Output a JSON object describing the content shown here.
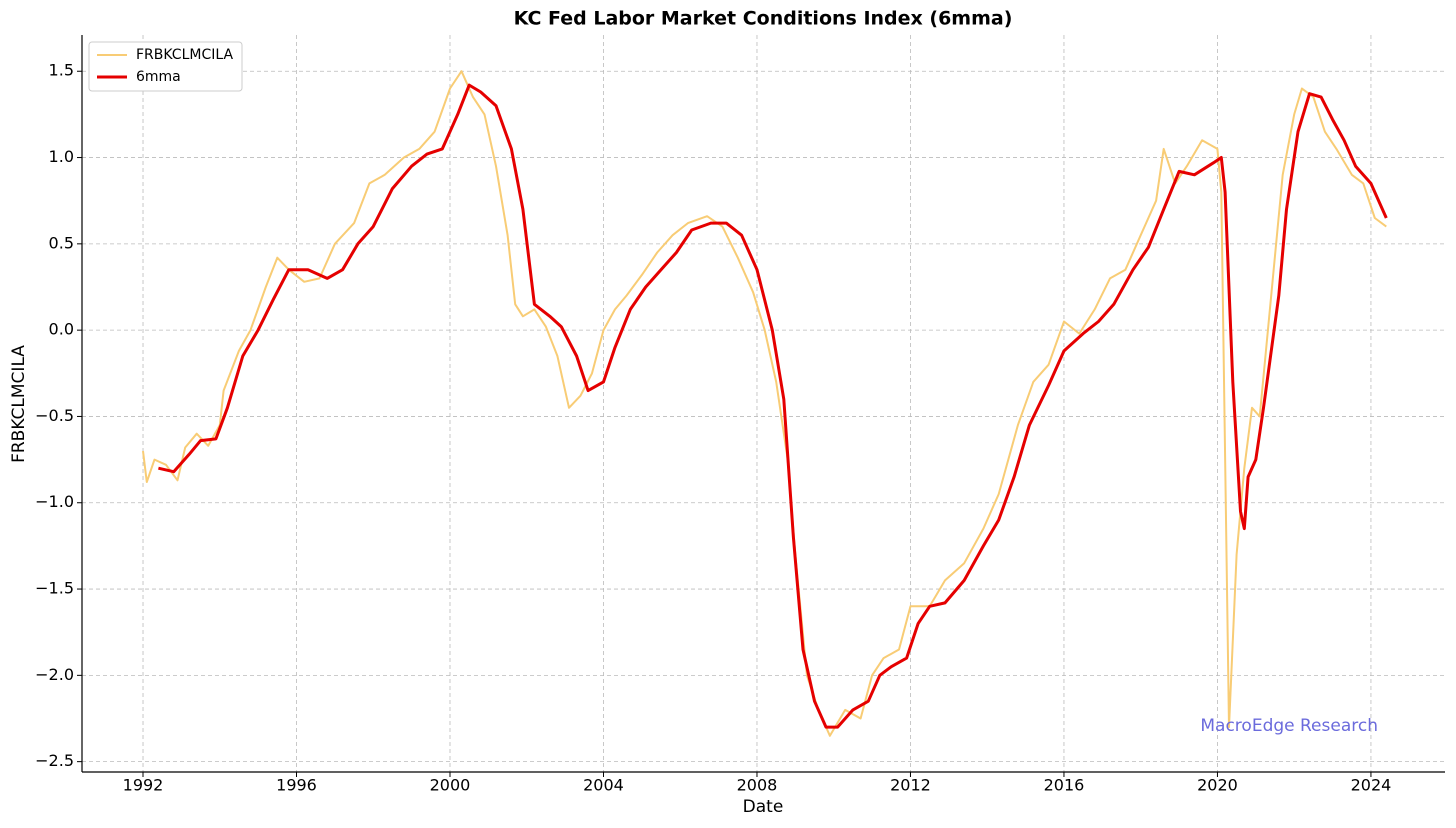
{
  "chart_data": {
    "type": "line",
    "title": "KC Fed Labor Market Conditions Index (6mma)",
    "x_label": "Date",
    "y_label": "FRBKCLMCILA",
    "annotation": "MacroEdge Research",
    "xlim": [
      1990.41,
      2025.93
    ],
    "xticks": [
      1992,
      1996,
      2000,
      2004,
      2008,
      2012,
      2016,
      2020,
      2024
    ],
    "ylim": [
      -2.56,
      1.71
    ],
    "yticks": [
      {
        "value": -2.5,
        "label": "−2.5"
      },
      {
        "value": -2.0,
        "label": "−2.0"
      },
      {
        "value": -1.5,
        "label": "−1.5"
      },
      {
        "value": -1.0,
        "label": "−1.0"
      },
      {
        "value": -0.5,
        "label": "−0.5"
      },
      {
        "value": 0,
        "label": "0.0"
      },
      0.5,
      {
        "value": 1.0,
        "label": "1.0"
      },
      1.5
    ],
    "grid": true,
    "legend": "upper-left",
    "series": [
      {
        "name": "FRBKCLMCILA",
        "color": "#f8cc75",
        "width": 2,
        "x": [
          1992.0,
          1992.1,
          1992.3,
          1992.6,
          1992.9,
          1993.1,
          1993.4,
          1993.7,
          1994.0,
          1994.1,
          1994.5,
          1994.8,
          1995.2,
          1995.5,
          1995.8,
          1996.2,
          1996.6,
          1997.0,
          1997.5,
          1997.9,
          1998.3,
          1998.8,
          1999.2,
          1999.6,
          2000.0,
          2000.3,
          2000.6,
          2000.9,
          2001.2,
          2001.5,
          2001.7,
          2001.9,
          2002.2,
          2002.5,
          2002.8,
          2003.1,
          2003.4,
          2003.7,
          2004.0,
          2004.3,
          2004.6,
          2005.0,
          2005.4,
          2005.8,
          2006.2,
          2006.7,
          2007.1,
          2007.5,
          2007.9,
          2008.2,
          2008.5,
          2008.8,
          2009.0,
          2009.3,
          2009.6,
          2009.9,
          2010.3,
          2010.7,
          2011.0,
          2011.3,
          2011.7,
          2012.0,
          2012.5,
          2012.9,
          2013.4,
          2013.9,
          2014.3,
          2014.8,
          2015.2,
          2015.6,
          2016.0,
          2016.4,
          2016.8,
          2017.2,
          2017.6,
          2018.0,
          2018.4,
          2018.6,
          2018.9,
          2019.2,
          2019.6,
          2020.0,
          2020.1,
          2020.3,
          2020.5,
          2020.7,
          2020.9,
          2021.1,
          2021.4,
          2021.7,
          2022.0,
          2022.2,
          2022.5,
          2022.8,
          2023.1,
          2023.5,
          2023.8,
          2024.1,
          2024.4
        ],
        "values": [
          -0.7,
          -0.88,
          -0.75,
          -0.78,
          -0.87,
          -0.68,
          -0.6,
          -0.67,
          -0.55,
          -0.35,
          -0.12,
          0.0,
          0.25,
          0.42,
          0.35,
          0.28,
          0.3,
          0.5,
          0.62,
          0.85,
          0.9,
          1.0,
          1.05,
          1.15,
          1.4,
          1.5,
          1.35,
          1.25,
          0.95,
          0.55,
          0.15,
          0.08,
          0.12,
          0.02,
          -0.15,
          -0.45,
          -0.38,
          -0.25,
          0.0,
          0.12,
          0.2,
          0.32,
          0.45,
          0.55,
          0.62,
          0.66,
          0.6,
          0.42,
          0.22,
          0.0,
          -0.3,
          -0.75,
          -1.3,
          -2.0,
          -2.2,
          -2.35,
          -2.2,
          -2.25,
          -2.0,
          -1.9,
          -1.85,
          -1.6,
          -1.6,
          -1.45,
          -1.35,
          -1.15,
          -0.95,
          -0.55,
          -0.3,
          -0.2,
          0.05,
          -0.02,
          0.12,
          0.3,
          0.35,
          0.55,
          0.75,
          1.05,
          0.85,
          0.95,
          1.1,
          1.05,
          0.8,
          -2.3,
          -1.3,
          -0.8,
          -0.45,
          -0.5,
          0.2,
          0.9,
          1.25,
          1.4,
          1.35,
          1.15,
          1.05,
          0.9,
          0.85,
          0.65,
          0.6
        ]
      },
      {
        "name": "6mma",
        "color": "#e50000",
        "width": 3,
        "x": [
          1992.4,
          1992.8,
          1993.2,
          1993.5,
          1993.9,
          1994.2,
          1994.6,
          1995.0,
          1995.4,
          1995.8,
          1996.3,
          1996.8,
          1997.2,
          1997.6,
          1998.0,
          1998.5,
          1999.0,
          1999.4,
          1999.8,
          2000.2,
          2000.5,
          2000.8,
          2001.2,
          2001.6,
          2001.9,
          2002.2,
          2002.6,
          2002.9,
          2003.3,
          2003.6,
          2004.0,
          2004.3,
          2004.7,
          2005.1,
          2005.5,
          2005.9,
          2006.3,
          2006.8,
          2007.2,
          2007.6,
          2008.0,
          2008.4,
          2008.7,
          2008.95,
          2009.2,
          2009.5,
          2009.8,
          2010.1,
          2010.5,
          2010.9,
          2011.2,
          2011.5,
          2011.9,
          2012.2,
          2012.5,
          2012.9,
          2013.4,
          2013.9,
          2014.3,
          2014.7,
          2015.1,
          2015.6,
          2016.0,
          2016.5,
          2016.9,
          2017.3,
          2017.8,
          2018.2,
          2018.6,
          2019.0,
          2019.4,
          2019.9,
          2020.1,
          2020.2,
          2020.4,
          2020.6,
          2020.7,
          2020.8,
          2021.0,
          2021.2,
          2021.6,
          2021.8,
          2022.1,
          2022.4,
          2022.7,
          2023.0,
          2023.3,
          2023.6,
          2024.0,
          2024.4
        ],
        "values": [
          -0.8,
          -0.82,
          -0.72,
          -0.64,
          -0.63,
          -0.45,
          -0.15,
          0.0,
          0.18,
          0.35,
          0.35,
          0.3,
          0.35,
          0.5,
          0.6,
          0.82,
          0.95,
          1.02,
          1.05,
          1.25,
          1.42,
          1.38,
          1.3,
          1.05,
          0.7,
          0.15,
          0.08,
          0.02,
          -0.15,
          -0.35,
          -0.3,
          -0.1,
          0.12,
          0.25,
          0.35,
          0.45,
          0.58,
          0.62,
          0.62,
          0.55,
          0.35,
          0.0,
          -0.4,
          -1.2,
          -1.85,
          -2.15,
          -2.3,
          -2.3,
          -2.2,
          -2.15,
          -2.0,
          -1.95,
          -1.9,
          -1.7,
          -1.6,
          -1.58,
          -1.45,
          -1.25,
          -1.1,
          -0.85,
          -0.55,
          -0.32,
          -0.12,
          -0.02,
          0.05,
          0.15,
          0.35,
          0.48,
          0.7,
          0.92,
          0.9,
          0.97,
          1.0,
          0.8,
          -0.3,
          -1.05,
          -1.15,
          -0.85,
          -0.75,
          -0.45,
          0.2,
          0.7,
          1.15,
          1.37,
          1.35,
          1.22,
          1.1,
          0.95,
          0.85,
          0.65
        ]
      }
    ]
  }
}
